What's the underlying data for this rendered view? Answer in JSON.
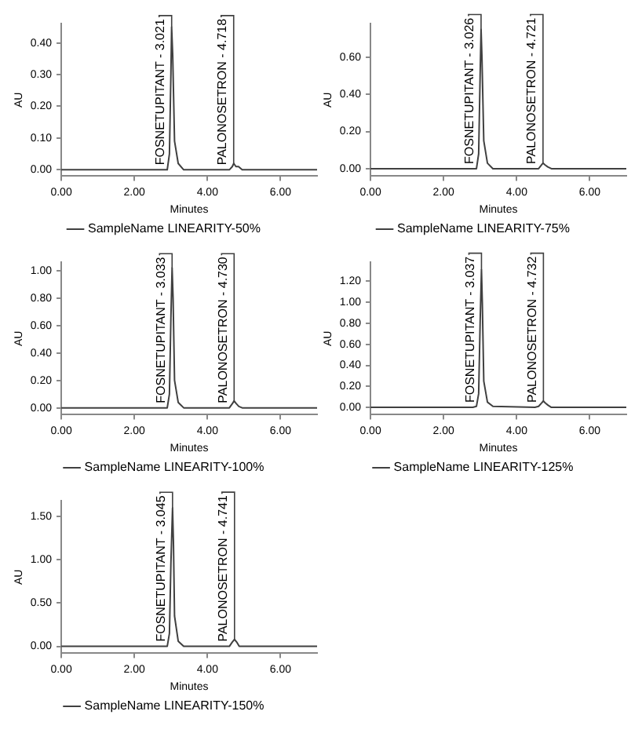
{
  "chart_data": [
    {
      "type": "line",
      "xlabel": "Minutes",
      "ylabel": "AU",
      "legend": "bottom",
      "grid": false,
      "marker": "none",
      "series": [
        {
          "name": "SampleName LINEARITY-50%",
          "color": "#404040",
          "x": [
            0,
            2.8,
            2.9,
            2.96,
            3.0,
            3.02,
            3.05,
            3.1,
            3.2,
            3.35,
            4.5,
            4.6,
            4.68,
            4.72,
            4.78,
            4.85,
            4.95,
            5.1,
            7.0
          ],
          "values": [
            0,
            0,
            0,
            0.05,
            0.3,
            0.45,
            0.36,
            0.09,
            0.02,
            0,
            0,
            0,
            0.01,
            0.02,
            0.01,
            0.01,
            0,
            0,
            0
          ]
        }
      ],
      "xlim": [
        0,
        7
      ],
      "xticks": [
        {
          "value": 0,
          "label": "0.00"
        },
        {
          "value": 2,
          "label": "2.00"
        },
        {
          "value": 4,
          "label": "4.00"
        },
        {
          "value": 6,
          "label": "6.00"
        }
      ],
      "ylim": [
        -0.02,
        0.46
      ],
      "yticks": [
        {
          "value": 0,
          "label": "0.00"
        },
        {
          "value": 0.1,
          "label": "0.10"
        },
        {
          "value": 0.2,
          "label": "0.20"
        },
        {
          "value": 0.3,
          "label": "0.30"
        },
        {
          "value": 0.4,
          "label": "0.40"
        }
      ],
      "annotations": [
        {
          "text": "FOSNETUPITANT - 3.021",
          "x": 3.021,
          "y": 0.45
        },
        {
          "text": "PALONOSETRON - 4.718",
          "x": 4.718,
          "y": 0.02
        }
      ]
    },
    {
      "type": "line",
      "xlabel": "Minutes",
      "ylabel": "AU",
      "legend": "bottom",
      "grid": false,
      "marker": "none",
      "series": [
        {
          "name": "SampleName LINEARITY-75%",
          "color": "#404040",
          "x": [
            0,
            2.8,
            2.9,
            2.96,
            3.0,
            3.026,
            3.05,
            3.1,
            3.2,
            3.35,
            4.5,
            4.6,
            4.68,
            4.72,
            4.78,
            4.85,
            4.95,
            5.1,
            7.0
          ],
          "values": [
            0,
            0,
            0,
            0.08,
            0.5,
            0.75,
            0.6,
            0.15,
            0.03,
            0,
            0,
            0,
            0.02,
            0.03,
            0.02,
            0.01,
            0,
            0,
            0
          ]
        }
      ],
      "xlim": [
        0,
        7
      ],
      "xticks": [
        {
          "value": 0,
          "label": "0.00"
        },
        {
          "value": 2,
          "label": "2.00"
        },
        {
          "value": 4,
          "label": "4.00"
        },
        {
          "value": 6,
          "label": "6.00"
        }
      ],
      "ylim": [
        -0.04,
        0.78
      ],
      "yticks": [
        {
          "value": 0,
          "label": "0.00"
        },
        {
          "value": 0.2,
          "label": "0.20"
        },
        {
          "value": 0.4,
          "label": "0.40"
        },
        {
          "value": 0.6,
          "label": "0.60"
        }
      ],
      "annotations": [
        {
          "text": "FOSNETUPITANT - 3.026",
          "x": 3.026,
          "y": 0.75
        },
        {
          "text": "PALONOSETRON - 4.721",
          "x": 4.721,
          "y": 0.03
        }
      ]
    },
    {
      "type": "line",
      "xlabel": "Minutes",
      "ylabel": "AU",
      "legend": "bottom",
      "grid": false,
      "marker": "none",
      "series": [
        {
          "name": "SampleName LINEARITY-100%",
          "color": "#404040",
          "x": [
            0,
            2.8,
            2.9,
            2.96,
            3.0,
            3.033,
            3.06,
            3.1,
            3.2,
            3.35,
            4.5,
            4.6,
            4.68,
            4.73,
            4.79,
            4.86,
            4.95,
            5.1,
            7.0
          ],
          "values": [
            0,
            0,
            0,
            0.1,
            0.65,
            1.02,
            0.8,
            0.2,
            0.04,
            0,
            0,
            0,
            0.03,
            0.05,
            0.03,
            0.01,
            0,
            0,
            0
          ]
        }
      ],
      "xlim": [
        0,
        7
      ],
      "xticks": [
        {
          "value": 0,
          "label": "0.00"
        },
        {
          "value": 2,
          "label": "2.00"
        },
        {
          "value": 4,
          "label": "4.00"
        },
        {
          "value": 6,
          "label": "6.00"
        }
      ],
      "ylim": [
        -0.05,
        1.06
      ],
      "yticks": [
        {
          "value": 0,
          "label": "0.00"
        },
        {
          "value": 0.2,
          "label": "0.20"
        },
        {
          "value": 0.4,
          "label": "0.40"
        },
        {
          "value": 0.6,
          "label": "0.60"
        },
        {
          "value": 0.8,
          "label": "0.80"
        },
        {
          "value": 1.0,
          "label": "1.00"
        }
      ],
      "annotations": [
        {
          "text": "FOSNETUPITANT - 3.033",
          "x": 3.033,
          "y": 1.02
        },
        {
          "text": "PALONOSETRON - 4.730",
          "x": 4.73,
          "y": 0.05
        }
      ]
    },
    {
      "type": "line",
      "xlabel": "Minutes",
      "ylabel": "AU",
      "legend": "bottom",
      "grid": false,
      "marker": "none",
      "series": [
        {
          "name": "SampleName LINEARITY-125%",
          "color": "#404040",
          "x": [
            0,
            2.8,
            2.9,
            2.96,
            3.0,
            3.037,
            3.06,
            3.1,
            3.2,
            3.35,
            4.5,
            4.6,
            4.68,
            4.73,
            4.79,
            4.86,
            4.95,
            5.1,
            7.0
          ],
          "values": [
            0,
            0,
            0.01,
            0.13,
            0.8,
            1.31,
            1.0,
            0.25,
            0.05,
            0.01,
            0,
            0.01,
            0.04,
            0.06,
            0.04,
            0.02,
            0,
            0,
            0
          ]
        }
      ],
      "xlim": [
        0,
        7
      ],
      "xticks": [
        {
          "value": 0,
          "label": "0.00"
        },
        {
          "value": 2,
          "label": "2.00"
        },
        {
          "value": 4,
          "label": "4.00"
        },
        {
          "value": 6,
          "label": "6.00"
        }
      ],
      "ylim": [
        -0.07,
        1.38
      ],
      "yticks": [
        {
          "value": 0,
          "label": "0.00"
        },
        {
          "value": 0.2,
          "label": "0.20"
        },
        {
          "value": 0.4,
          "label": "0.40"
        },
        {
          "value": 0.6,
          "label": "0.60"
        },
        {
          "value": 0.8,
          "label": "0.80"
        },
        {
          "value": 1.0,
          "label": "1.00"
        },
        {
          "value": 1.2,
          "label": "1.20"
        }
      ],
      "annotations": [
        {
          "text": "FOSNETUPITANT - 3.037",
          "x": 3.037,
          "y": 1.31
        },
        {
          "text": "PALONOSETRON - 4.732",
          "x": 4.732,
          "y": 0.06
        }
      ]
    },
    {
      "type": "line",
      "xlabel": "Minutes",
      "ylabel": "AU",
      "legend": "bottom",
      "grid": false,
      "marker": "none",
      "series": [
        {
          "name": "SampleName LINEARITY-150%",
          "color": "#404040",
          "x": [
            0,
            2.8,
            2.9,
            2.96,
            3.0,
            3.045,
            3.07,
            3.1,
            3.2,
            3.35,
            4.5,
            4.6,
            4.68,
            4.74,
            4.8,
            4.87,
            4.95,
            5.1,
            7.0
          ],
          "values": [
            0,
            0,
            0,
            0.15,
            0.95,
            1.6,
            1.2,
            0.35,
            0.06,
            0,
            0,
            0,
            0.05,
            0.08,
            0.05,
            0,
            0,
            0,
            0
          ]
        }
      ],
      "xlim": [
        0,
        7
      ],
      "xticks": [
        {
          "value": 0,
          "label": "0.00"
        },
        {
          "value": 2,
          "label": "2.00"
        },
        {
          "value": 4,
          "label": "4.00"
        },
        {
          "value": 6,
          "label": "6.00"
        }
      ],
      "ylim": [
        -0.08,
        1.68
      ],
      "yticks": [
        {
          "value": 0,
          "label": "0.00"
        },
        {
          "value": 0.5,
          "label": "0.50"
        },
        {
          "value": 1.0,
          "label": "1.00"
        },
        {
          "value": 1.5,
          "label": "1.50"
        }
      ],
      "annotations": [
        {
          "text": "FOSNETUPITANT - 3.045",
          "x": 3.045,
          "y": 1.6
        },
        {
          "text": "PALONOSETRON - 4.741",
          "x": 4.741,
          "y": 0.08
        }
      ]
    }
  ]
}
